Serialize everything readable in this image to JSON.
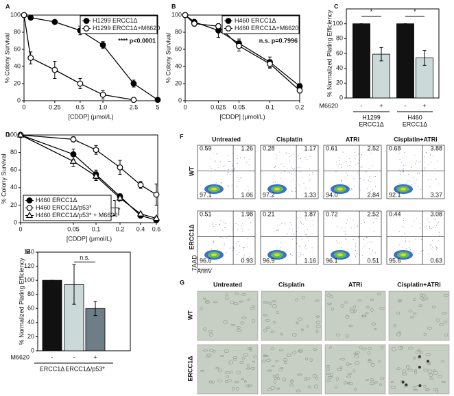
{
  "chart_data": [
    {
      "label": "A",
      "type": "line",
      "categories": [
        "0",
        null,
        "0.25",
        "0.5",
        "1.0",
        "2.5",
        "5"
      ],
      "series": [
        {
          "name": "H1299 ERCC1Δ",
          "marker": "filled-circle",
          "color": "#000000",
          "values": [
            100,
            97,
            92,
            82,
            65,
            20,
            1
          ],
          "errors": [
            0,
            0,
            2,
            5,
            4,
            4,
            0
          ]
        },
        {
          "name": "H1299 ERCC1Δ+M6620",
          "marker": "open-circle",
          "color": "#000000",
          "values": [
            100,
            50,
            36,
            20,
            7,
            1,
            null
          ],
          "errors": [
            0,
            7,
            10,
            6,
            5,
            0,
            null
          ]
        }
      ],
      "ylim": [
        0,
        100
      ],
      "yticks": [
        0,
        20,
        40,
        60,
        80,
        100
      ],
      "xlabel": "[CDDP] (μmol/L)",
      "ylabel": "% Colony Survival",
      "annotation": "**** p<0.0001",
      "legend": "upper right"
    },
    {
      "label": "B",
      "type": "line",
      "categories": [
        "0",
        null,
        "0.025",
        "0.05",
        "0.1",
        "0.2"
      ],
      "series": [
        {
          "name": "H460 ERCC1Δ",
          "marker": "filled-circle",
          "color": "#000000",
          "values": [
            100,
            92,
            82,
            67,
            45,
            17
          ],
          "errors": [
            0,
            3,
            8,
            5,
            6,
            3
          ]
        },
        {
          "name": "H460 ERCC1Δ+M6620",
          "marker": "open-circle",
          "color": "#000000",
          "values": [
            100,
            90,
            87,
            64,
            43,
            12
          ],
          "errors": [
            0,
            3,
            3,
            6,
            5,
            3
          ]
        }
      ],
      "ylim": [
        0,
        100
      ],
      "yticks": [
        0,
        20,
        40,
        60,
        80,
        100
      ],
      "xlabel": "[CDDP] (μmol/L)",
      "ylabel": "% Colony Survival",
      "annotation": "n.s. p=0.7996",
      "legend": "upper right"
    },
    {
      "label": "C",
      "type": "bar",
      "categories": [
        "-",
        "+",
        "-",
        "+"
      ],
      "values": [
        100,
        59,
        100,
        54
      ],
      "errors": [
        0,
        9,
        0,
        10
      ],
      "colors": [
        "#111111",
        "#cbd9d9",
        "#111111",
        "#cbd9d9"
      ],
      "row_label": "M6620",
      "groups": [
        [
          "H1299",
          "ERCC1Δ"
        ],
        [
          "H460",
          "ERCC1Δ"
        ]
      ],
      "significance": [
        "*",
        "*"
      ],
      "ylim": [
        0,
        120
      ],
      "yticks": [
        0,
        20,
        40,
        60,
        80,
        100
      ],
      "ylabel": "% Normalized Plating Efficiency"
    },
    {
      "label": "D",
      "type": "line",
      "categories": [
        "0",
        "0.05",
        "0.1",
        "0.2",
        "0.4",
        "0.6"
      ],
      "series": [
        {
          "name": "H460 ERCC1Δ",
          "marker": "filled-circle",
          "color": "#000000",
          "values": [
            100,
            78,
            55,
            30,
            8,
            3
          ],
          "errors": [
            0,
            6,
            5,
            3,
            2,
            2
          ]
        },
        {
          "name": "H460 ERCC1Δ/p53*",
          "marker": "open-circle",
          "color": "#000000",
          "values": [
            100,
            95,
            83,
            63,
            43,
            32
          ],
          "errors": [
            0,
            3,
            5,
            8,
            4,
            12
          ]
        },
        {
          "name": "H460 ERCC1Δ/p53* + M6620",
          "marker": "open-triangle",
          "color": "#000000",
          "values": [
            100,
            70,
            53,
            28,
            10,
            5
          ],
          "errors": [
            0,
            6,
            5,
            3,
            2,
            2
          ]
        }
      ],
      "ylim": [
        0,
        100
      ],
      "yticks": [
        0,
        20,
        40,
        60,
        80,
        100
      ],
      "xlabel": "[CDDP] (μmol/L)",
      "ylabel": "% Colony Survival",
      "annotations": [
        "*",
        "*"
      ],
      "legend": "lower left"
    },
    {
      "label": "E",
      "type": "bar",
      "categories": [
        "-",
        "-",
        "+"
      ],
      "values": [
        100,
        94,
        60
      ],
      "errors": [
        0,
        28,
        10
      ],
      "colors": [
        "#111111",
        "#cbd9d9",
        "#6d7e86"
      ],
      "row_label": "M6620",
      "groups": [
        [
          "ERCC1Δ"
        ],
        [
          "ERCC1Δ/p53*"
        ]
      ],
      "significance": [
        "n.s."
      ],
      "ylim": [
        0,
        140
      ],
      "yticks": [
        0,
        20,
        40,
        60,
        80,
        100,
        120,
        140
      ],
      "ylabel": "% Normalized Plating Efficiency"
    }
  ],
  "flow": {
    "label": "F",
    "columns": [
      "Untreated",
      "Cisplatin",
      "ATRi",
      "Cisplatin+ATRi"
    ],
    "rows": [
      "WT",
      "ERCC1Δ"
    ],
    "y_axis": "7AAD",
    "x_axis": "AnnV",
    "quadrants": [
      [
        [
          "0.59",
          "1.26",
          "97.1",
          "1.06"
        ],
        [
          "0.28",
          "1.17",
          "97.2",
          "1.33"
        ],
        [
          "0.61",
          "2.52",
          "94.0",
          "2.84"
        ],
        [
          "0.68",
          "3.88",
          "92.1",
          "3.37"
        ]
      ],
      [
        [
          "0.51",
          "1.98",
          "96.6",
          "0.93"
        ],
        [
          "0.21",
          "1.87",
          "96.9",
          "1.16"
        ],
        [
          "0.72",
          "2.52",
          "96.1",
          "0.51"
        ],
        [
          "0.44",
          "3.08",
          "95.6",
          "0.63"
        ]
      ]
    ]
  },
  "micro": {
    "label": "G",
    "columns": [
      "Untreated",
      "Cisplatin",
      "ATRi",
      "Cisplatin+ATRi"
    ],
    "rows": [
      "WT",
      "ERCC1Δ"
    ]
  }
}
